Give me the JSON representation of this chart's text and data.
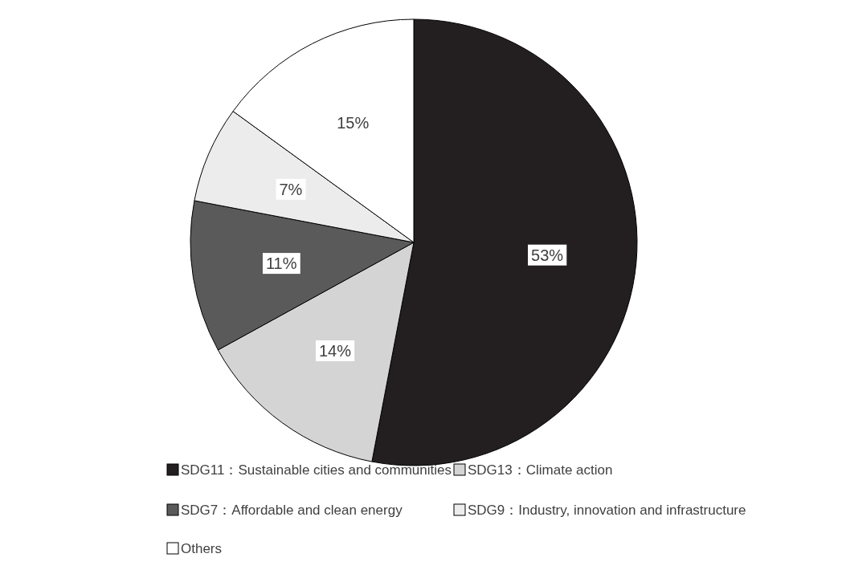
{
  "chart_data": {
    "type": "pie",
    "categories": [
      "SDG11：Sustainable cities and communities",
      "SDG13：Climate action",
      "SDG7：Affordable and clean energy",
      "SDG9：Industry, innovation and infrastructure",
      "Others"
    ],
    "values": [
      53,
      14,
      11,
      7,
      15
    ],
    "colors": [
      "#231f20",
      "#d4d4d4",
      "#5a5a5a",
      "#ececec",
      "#ffffff"
    ],
    "value_labels": [
      "53%",
      "14%",
      "11%",
      "7%",
      "15%"
    ],
    "legend": "bottom"
  }
}
